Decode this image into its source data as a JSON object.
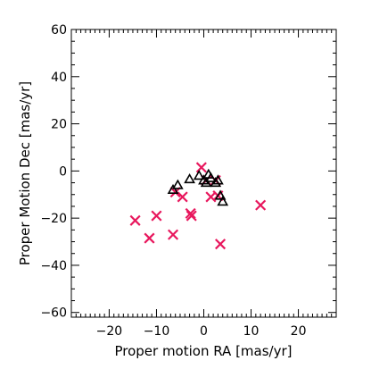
{
  "chart_data": {
    "type": "scatter",
    "title": "",
    "xlabel": "Proper motion RA [mas/yr]",
    "ylabel": "Proper Motion Dec [mas/yr]",
    "xlim": [
      -28,
      28
    ],
    "ylim": [
      -62,
      60
    ],
    "xticks": [
      -20,
      -10,
      0,
      10,
      20
    ],
    "yticks": [
      -60,
      -40,
      -20,
      0,
      20,
      40,
      60
    ],
    "grid": false,
    "legend": "none",
    "series": [
      {
        "marker": "x",
        "color": "#e8175d",
        "points": [
          [
            -14.5,
            -21
          ],
          [
            -11.5,
            -28.5
          ],
          [
            -10,
            -19
          ],
          [
            -6.5,
            -27
          ],
          [
            -6,
            -9
          ],
          [
            -4.5,
            -11
          ],
          [
            -2.8,
            -18
          ],
          [
            -2.6,
            -19
          ],
          [
            -0.5,
            1.5
          ],
          [
            0.5,
            -4
          ],
          [
            1.5,
            -11
          ],
          [
            2.5,
            -4
          ],
          [
            3,
            -10.5
          ],
          [
            3.5,
            -31
          ],
          [
            12,
            -14.5
          ]
        ]
      },
      {
        "marker": "triangle",
        "color": "#000000",
        "points": [
          [
            -6.5,
            -8
          ],
          [
            -5.5,
            -6
          ],
          [
            -3,
            -3.5
          ],
          [
            -1,
            -2
          ],
          [
            0,
            -4
          ],
          [
            0.5,
            -5
          ],
          [
            1,
            -1.5
          ],
          [
            1.5,
            -3
          ],
          [
            2.5,
            -5
          ],
          [
            3,
            -4
          ],
          [
            3.5,
            -10.5
          ],
          [
            4,
            -13
          ]
        ]
      }
    ]
  }
}
